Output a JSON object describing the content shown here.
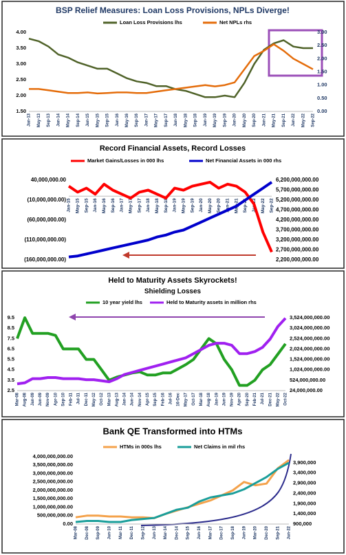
{
  "chart_data": [
    {
      "type": "line",
      "title": "BSP Relief Measures: Loan Loss Provisions, NPLs Diverge!",
      "x": [
        "Jan-13",
        "May-13",
        "Sep-13",
        "Jan-14",
        "May-14",
        "Sep-14",
        "Jan-15",
        "May-15",
        "Sep-15",
        "Jan-16",
        "May-16",
        "Sep-16",
        "Jan-17",
        "May-17",
        "Sep-17",
        "Jan-18",
        "May-18",
        "Sep-18",
        "Jan-19",
        "May-19",
        "Sep-19",
        "Jan-20",
        "May-20",
        "Sep-20",
        "Jan-21",
        "May-21",
        "Sep-21",
        "Jan-22",
        "May-22",
        "Sep-22"
      ],
      "series": [
        {
          "name": "Loan Loss Provisions lhs",
          "color": "#4f6228",
          "values": [
            3.8,
            3.72,
            3.55,
            3.3,
            3.2,
            3.05,
            2.95,
            2.85,
            2.85,
            2.7,
            2.55,
            2.45,
            2.4,
            2.3,
            2.3,
            2.2,
            2.15,
            2.05,
            1.95,
            1.95,
            2.0,
            1.95,
            2.4,
            3.0,
            3.45,
            3.65,
            3.75,
            3.55,
            3.5,
            3.5
          ]
        },
        {
          "name": "Net NPLs rhs",
          "color": "#e46c0a",
          "axis": "y2",
          "values": [
            0.85,
            0.85,
            0.8,
            0.75,
            0.7,
            0.7,
            0.72,
            0.68,
            0.7,
            0.72,
            0.72,
            0.7,
            0.7,
            0.75,
            0.8,
            0.85,
            0.9,
            0.95,
            1.0,
            0.95,
            1.0,
            1.1,
            1.6,
            2.1,
            2.3,
            2.55,
            2.3,
            2.0,
            1.8,
            1.6
          ]
        }
      ],
      "ylim": [
        1.5,
        4
      ],
      "yticks": [
        {
          "value": 1.5,
          "label": "1.50"
        },
        {
          "value": 2,
          "label": "2.00"
        },
        {
          "value": 2.5,
          "label": "2.50"
        },
        {
          "value": 3,
          "label": "3.00"
        },
        {
          "value": 3.5,
          "label": "3.50"
        },
        {
          "value": 4,
          "label": "4.00"
        }
      ],
      "y2lim": [
        0,
        3
      ],
      "y2ticks": [
        {
          "value": 0,
          "label": "0.00"
        },
        {
          "value": 0.5,
          "label": "0.50"
        },
        {
          "value": 1,
          "label": "1.00"
        },
        {
          "value": 1.5,
          "label": "1.50"
        },
        {
          "value": 2,
          "label": "2.00"
        },
        {
          "value": 2.5,
          "label": "2.50"
        },
        {
          "value": 3,
          "label": "3.00"
        }
      ]
    },
    {
      "type": "line",
      "title": "Record Financial Assets, Record Losses",
      "x": [
        "Jan-15",
        "May-15",
        "Sep-15",
        "Jan-16",
        "May-16",
        "Sep-16",
        "Jan-17",
        "May-17",
        "Sep-17",
        "Jan-18",
        "May-18",
        "Sep-18",
        "Jan-19",
        "May-19",
        "Sep-19",
        "Jan-20",
        "May-20",
        "Sep-20",
        "Jan-21",
        "May-21",
        "Sep-21",
        "Jan-22",
        "May-22",
        "Sep-22"
      ],
      "series": [
        {
          "name": "Market Gains/Losses in 000 lhs",
          "color": "#ff0000",
          "values": [
            25000000,
            10000000,
            20000000,
            5000000,
            30000000,
            15000000,
            5000000,
            -5000000,
            10000000,
            15000000,
            5000000,
            -5000000,
            20000000,
            15000000,
            25000000,
            30000000,
            35000000,
            20000000,
            30000000,
            25000000,
            10000000,
            -20000000,
            -90000000,
            -140000000
          ]
        },
        {
          "name": "Net Financial Assets in 000 rhs",
          "color": "#0000cc",
          "axis": "y2",
          "values": [
            2350000000,
            2400000000,
            2500000000,
            2600000000,
            2700000000,
            2800000000,
            2900000000,
            3000000000,
            3100000000,
            3200000000,
            3350000000,
            3450000000,
            3600000000,
            3700000000,
            3900000000,
            4100000000,
            4300000000,
            4500000000,
            4700000000,
            4900000000,
            5200000000,
            5500000000,
            5800000000,
            6100000000
          ]
        }
      ],
      "ylim": [
        -160000000,
        40000000
      ],
      "yticks": [
        {
          "value": 40000000,
          "label": "40,000,000.00"
        },
        {
          "value": -10000000,
          "label": "(10,000,000.00)"
        },
        {
          "value": -60000000,
          "label": "(60,000,000.00)"
        },
        {
          "value": -110000000,
          "label": "(110,000,000.00)"
        },
        {
          "value": -160000000,
          "label": "(160,000,000.00)"
        }
      ],
      "y2lim": [
        2200000000,
        6200000000
      ],
      "y2ticks": [
        {
          "value": 6200000000,
          "label": "6,200,000,000.00"
        },
        {
          "value": 5700000000,
          "label": "5,700,000,000.00"
        },
        {
          "value": 5200000000,
          "label": "5,200,000,000.00"
        },
        {
          "value": 4700000000,
          "label": "4,700,000,000.00"
        },
        {
          "value": 4200000000,
          "label": "4,200,000,000.00"
        },
        {
          "value": 3700000000,
          "label": "3,700,000,000.00"
        },
        {
          "value": 3200000000,
          "label": "3,200,000,000.00"
        },
        {
          "value": 2700000000,
          "label": "2,700,000,000.00"
        },
        {
          "value": 2200000000,
          "label": "2,200,000,000.00"
        }
      ]
    },
    {
      "type": "line",
      "title": "Held to Maturity Assets Skyrockets!",
      "subtitle": "Shielding Losses",
      "x": [
        "Mar-08",
        "Aug-08",
        "Jan-09",
        "Jun-09",
        "Nov-09",
        "Apr-10",
        "Sep-10",
        "Feb-11",
        "Jul-11",
        "Dec-11",
        "May-12",
        "Oct-12",
        "Mar-13",
        "Aug-13",
        "Jan-14",
        "Jun-14",
        "Nov-14",
        "Apr-15",
        "Sep-15",
        "Feb-16",
        "Jul-16",
        "16-Dec",
        "May-17",
        "Oct-17",
        "Mar-18",
        "Aug-18",
        "Jan-19",
        "Jun-19",
        "Nov-19",
        "Apr-20",
        "Sep-20",
        "Feb-21",
        "Jul-21",
        "Dec-21",
        "May-22",
        "Oct-22"
      ],
      "series": [
        {
          "name": "10 year yield lhs",
          "color": "#22a022",
          "values": [
            7.5,
            9.5,
            8,
            8,
            8,
            7.8,
            6.5,
            6.5,
            6.5,
            5.5,
            5.5,
            4.5,
            3.5,
            3.8,
            4.0,
            4.2,
            4.3,
            4.0,
            4.0,
            4.2,
            4.2,
            4.6,
            5.0,
            5.5,
            6.5,
            7.5,
            7.0,
            5.5,
            4.5,
            3.0,
            3.0,
            3.5,
            4.5,
            5.0,
            6.0,
            7.0
          ]
        },
        {
          "name": "Held to Maturity assets in million rhs",
          "color": "#a020f0",
          "axis": "y2",
          "values": [
            350000000,
            400000000,
            600000000,
            600000000,
            650000000,
            650000000,
            600000000,
            600000000,
            600000000,
            550000000,
            550000000,
            500000000,
            450000000,
            600000000,
            800000000,
            900000000,
            1000000000,
            1100000000,
            1200000000,
            1300000000,
            1400000000,
            1500000000,
            1600000000,
            1800000000,
            2000000000,
            2200000000,
            2300000000,
            2300000000,
            2200000000,
            1800000000,
            1800000000,
            1900000000,
            2100000000,
            2500000000,
            3100000000,
            3500000000
          ]
        }
      ],
      "ylim": [
        2.5,
        9.5
      ],
      "yticks": [
        2.5,
        3.5,
        4.5,
        5.5,
        6.5,
        7.5,
        8.5,
        9.5
      ],
      "y2lim": [
        24000000,
        3524000000
      ],
      "y2ticks": [
        {
          "value": 3524000000,
          "label": "3,524,000,000.00"
        },
        {
          "value": 3024000000,
          "label": "3,024,000,000.00"
        },
        {
          "value": 2524000000,
          "label": "2,524,000,000.00"
        },
        {
          "value": 2024000000,
          "label": "2,024,000,000.00"
        },
        {
          "value": 1524000000,
          "label": "1,524,000,000.00"
        },
        {
          "value": 1024000000,
          "label": "1,024,000,000.00"
        },
        {
          "value": 524000000,
          "label": "524,000,000.00"
        },
        {
          "value": 24000000,
          "label": "24,000,000.00"
        }
      ]
    },
    {
      "type": "line",
      "title": "Bank QE Transformed into HTMs",
      "x": [
        "Mar-08",
        "Dec-08",
        "Sep-09",
        "Jun-10",
        "Mar-11",
        "Dec-11",
        "Sep-12",
        "Jun-13",
        "Mar-14",
        "Dec-14",
        "Sep-15",
        "Jun-16",
        "Mar-17",
        "Dec-17",
        "Sep-18",
        "Jun-19",
        "Mar-20",
        "Dec-20",
        "Sep-21",
        "Jun-22"
      ],
      "series": [
        {
          "name": "HTMs in 000s lhs",
          "color": "#f4a24b",
          "values": [
            400000000,
            500000000,
            500000000,
            450000000,
            450000000,
            400000000,
            400000000,
            350000000,
            600000000,
            800000000,
            1000000000,
            1200000000,
            1400000000,
            1700000000,
            2000000000,
            2500000000,
            2300000000,
            2400000000,
            3300000000,
            3800000000
          ]
        },
        {
          "name": "Net Claims in mil rhs",
          "color": "#1a9e9a",
          "axis": "y2",
          "values": [
            1000000,
            1050000,
            1050000,
            1000000,
            1000000,
            1100000,
            1150000,
            1200000,
            1400000,
            1600000,
            1700000,
            2000000,
            2200000,
            2300000,
            2400000,
            2600000,
            2900000,
            3200000,
            3600000,
            3900000
          ]
        }
      ],
      "ylim": [
        0,
        4000000000
      ],
      "yticks": [
        {
          "value": 4000000000,
          "label": "4,000,000,000.00"
        },
        {
          "value": 3500000000,
          "label": "3,500,000,000.00"
        },
        {
          "value": 3000000000,
          "label": "3,000,000,000.00"
        },
        {
          "value": 2500000000,
          "label": "2,500,000,000.00"
        },
        {
          "value": 2000000000,
          "label": "2,000,000,000.00"
        },
        {
          "value": 1500000000,
          "label": "1,500,000,000.00"
        },
        {
          "value": 1000000000,
          "label": "1,000,000,000.00"
        },
        {
          "value": 500000000,
          "label": "500,000,000.00"
        },
        {
          "value": 0,
          "label": "0.00"
        }
      ],
      "y2lim": [
        900000,
        4200000
      ],
      "y2ticks": [
        {
          "value": 3900000,
          "label": "3,900,000"
        },
        {
          "value": 3400000,
          "label": "3,400,000"
        },
        {
          "value": 2900000,
          "label": "2,900,000"
        },
        {
          "value": 2400000,
          "label": "2,400,000"
        },
        {
          "value": 1900000,
          "label": "1,900,000"
        },
        {
          "value": 1400000,
          "label": "1,400,000"
        },
        {
          "value": 900000,
          "label": "900,000"
        }
      ]
    }
  ]
}
